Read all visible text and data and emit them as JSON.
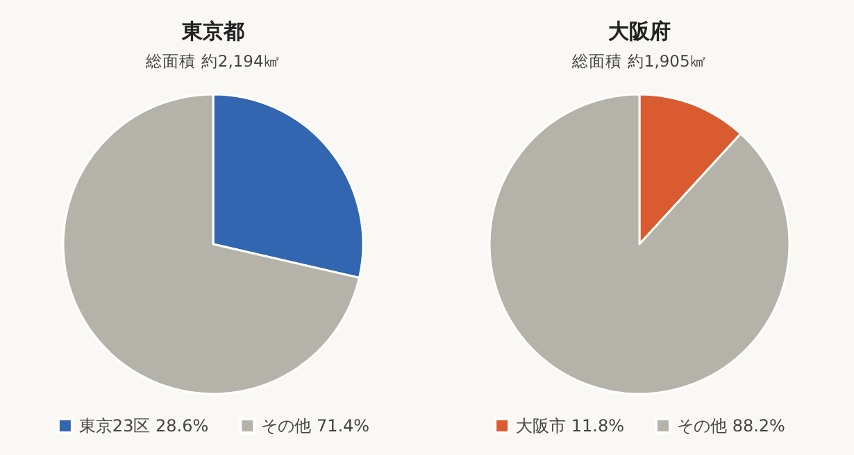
{
  "chart_data": [
    {
      "type": "pie",
      "title": "東京都",
      "subtitle": "総面積 約2,194㎢",
      "categories": [
        "東京23区",
        "その他"
      ],
      "values": [
        28.6,
        71.4
      ],
      "colors": [
        "#3366b0",
        "#b5b2aa"
      ],
      "value_labels": [
        "28.6%",
        "71.4%"
      ],
      "legend": "bottom"
    },
    {
      "type": "pie",
      "title": "大阪府",
      "subtitle": "総面積 約1,905㎢",
      "categories": [
        "大阪市",
        "その他"
      ],
      "values": [
        11.8,
        88.2
      ],
      "colors": [
        "#d95b2f",
        "#b5b2aa"
      ],
      "value_labels": [
        "11.8%",
        "88.2%"
      ],
      "legend": "bottom"
    }
  ]
}
